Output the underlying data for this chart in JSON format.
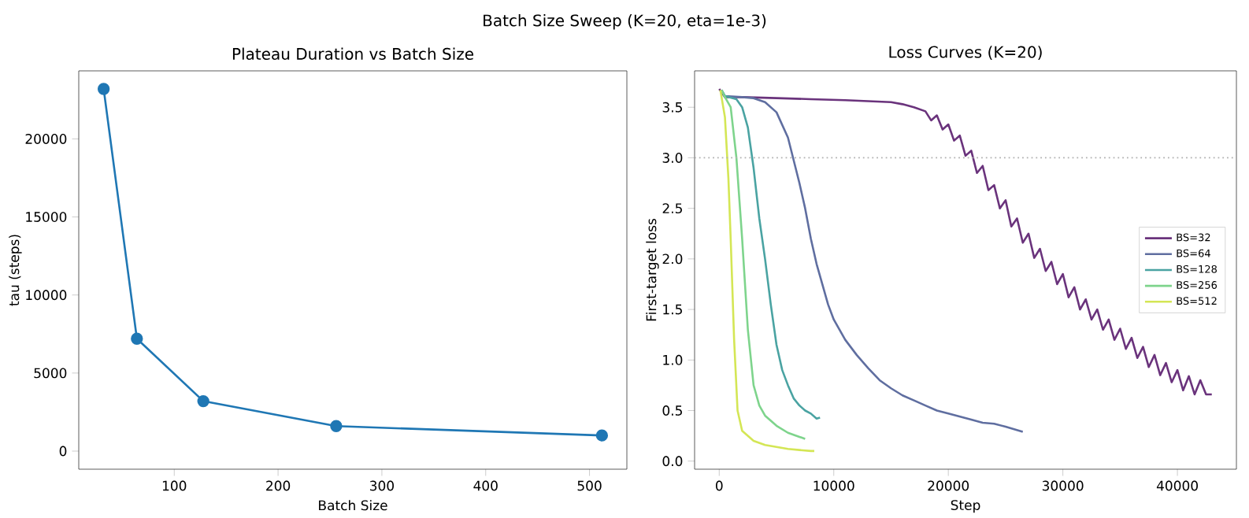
{
  "chart_data": [
    {
      "type": "line",
      "title": "Plateau Duration vs Batch Size",
      "xlabel": "Batch Size",
      "ylabel": "tau (steps)",
      "annotations": [
        "Batch Size Sweep (K=20, eta=1e-3)"
      ],
      "x": [
        32,
        64,
        128,
        256,
        512
      ],
      "values": [
        23200,
        7200,
        3200,
        1600,
        1000
      ],
      "color": "#1f77b4",
      "marker": "circle",
      "xlim": [
        8,
        536
      ],
      "ylim": [
        -1160,
        24360
      ],
      "xticks": [
        100,
        200,
        300,
        400,
        500
      ],
      "yticks": [
        0,
        5000,
        10000,
        15000,
        20000
      ],
      "grid": false
    },
    {
      "type": "line",
      "title": "Loss Curves (K=20)",
      "xlabel": "Step",
      "ylabel": "First-target loss",
      "legend": "right",
      "marker": "none",
      "xlim": [
        -2150,
        45150
      ],
      "ylim": [
        -0.08,
        3.86
      ],
      "xticks": [
        0,
        10000,
        20000,
        30000,
        40000
      ],
      "yticks": [
        {
          "value": 0,
          "label": "0.0"
        },
        0.5,
        {
          "value": 1,
          "label": "1.0"
        },
        1.5,
        {
          "value": 2,
          "label": "2.0"
        },
        2.5,
        {
          "value": 3,
          "label": "3.0"
        },
        3.5
      ],
      "ref_lines": [
        {
          "axis": "y",
          "value": 3.0,
          "color": "#b0b0b0",
          "line_style": "dotted"
        }
      ],
      "series": [
        {
          "name": "BS=32",
          "color": "#6a337c",
          "x": [
            0,
            500,
            2000,
            5000,
            8000,
            11000,
            13000,
            15000,
            16000,
            17000,
            18000,
            18500,
            19000,
            19500,
            20000,
            20500,
            21000,
            21500,
            22000,
            22500,
            23000,
            23500,
            24000,
            24500,
            25000,
            25500,
            26000,
            26500,
            27000,
            27500,
            28000,
            28500,
            29000,
            29500,
            30000,
            30500,
            31000,
            31500,
            32000,
            32500,
            33000,
            33500,
            34000,
            34500,
            35000,
            35500,
            36000,
            36500,
            37000,
            37500,
            38000,
            38500,
            39000,
            39500,
            40000,
            40500,
            41000,
            41500,
            42000,
            42500,
            43000
          ],
          "values": [
            3.68,
            3.6,
            3.6,
            3.59,
            3.58,
            3.57,
            3.56,
            3.55,
            3.53,
            3.5,
            3.46,
            3.37,
            3.42,
            3.28,
            3.33,
            3.17,
            3.22,
            3.02,
            3.07,
            2.85,
            2.92,
            2.68,
            2.73,
            2.5,
            2.58,
            2.32,
            2.4,
            2.16,
            2.25,
            2.01,
            2.1,
            1.88,
            1.97,
            1.75,
            1.85,
            1.62,
            1.72,
            1.5,
            1.6,
            1.4,
            1.5,
            1.3,
            1.4,
            1.2,
            1.31,
            1.11,
            1.22,
            1.02,
            1.13,
            0.93,
            1.05,
            0.85,
            0.97,
            0.78,
            0.9,
            0.7,
            0.84,
            0.66,
            0.8,
            0.66,
            0.66
          ]
        },
        {
          "name": "BS=64",
          "color": "#5f6ea0",
          "x": [
            200,
            500,
            2000,
            3000,
            4000,
            5000,
            6000,
            7000,
            7500,
            8000,
            8500,
            9000,
            9500,
            10000,
            11000,
            12000,
            13000,
            14000,
            15000,
            16000,
            17000,
            18000,
            19000,
            20000,
            21000,
            22000,
            23000,
            24000,
            25000,
            26500
          ],
          "values": [
            3.67,
            3.61,
            3.6,
            3.59,
            3.55,
            3.45,
            3.2,
            2.75,
            2.5,
            2.2,
            1.95,
            1.75,
            1.55,
            1.4,
            1.2,
            1.05,
            0.92,
            0.8,
            0.72,
            0.65,
            0.6,
            0.55,
            0.5,
            0.47,
            0.44,
            0.41,
            0.38,
            0.37,
            0.34,
            0.29
          ]
        },
        {
          "name": "BS=128",
          "color": "#4aa3a2",
          "x": [
            200,
            500,
            1500,
            2000,
            2500,
            3000,
            3500,
            4000,
            4500,
            5000,
            5500,
            6000,
            6500,
            7000,
            7500,
            8000,
            8500,
            8800
          ],
          "values": [
            3.67,
            3.61,
            3.58,
            3.5,
            3.3,
            2.9,
            2.4,
            2.0,
            1.55,
            1.15,
            0.9,
            0.75,
            0.62,
            0.55,
            0.5,
            0.47,
            0.42,
            0.43
          ]
        },
        {
          "name": "BS=256",
          "color": "#7ed48c",
          "x": [
            200,
            500,
            1000,
            1500,
            2000,
            2500,
            3000,
            3500,
            4000,
            5000,
            6000,
            7000,
            7500
          ],
          "values": [
            3.67,
            3.6,
            3.5,
            3.0,
            2.2,
            1.3,
            0.75,
            0.55,
            0.45,
            0.35,
            0.28,
            0.24,
            0.22
          ]
        },
        {
          "name": "BS=512",
          "color": "#d4e655",
          "x": [
            100,
            500,
            800,
            1000,
            1300,
            1600,
            2000,
            3000,
            4000,
            5000,
            6000,
            7000,
            8000,
            8300
          ],
          "values": [
            3.67,
            3.4,
            2.8,
            2.2,
            1.2,
            0.5,
            0.3,
            0.2,
            0.16,
            0.14,
            0.12,
            0.11,
            0.1,
            0.1
          ]
        }
      ]
    }
  ]
}
